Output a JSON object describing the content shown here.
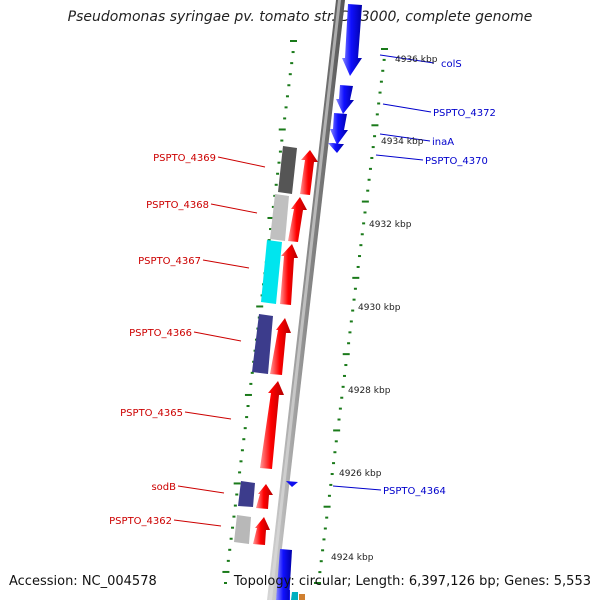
{
  "title": "Pseudomonas syringae pv. tomato str. DC3000, complete genome",
  "footer": {
    "accession": "Accession: NC_004578",
    "topology": "Topology: circular; Length: 6,397,126 bp; Genes: 5,553"
  },
  "colors": {
    "backbone": "#8c8c8c",
    "forward_arrow": "#0000ee",
    "reverse_arrow": "#ee0000",
    "left_label": "#cc0000",
    "right_label": "#0000cc",
    "tick": "#1a7a1a"
  },
  "coordinate_labels": [
    "4936 kbp",
    "4934 kbp",
    "4932 kbp",
    "4930 kbp",
    "4928 kbp",
    "4926 kbp",
    "4924 kbp"
  ],
  "left_genes": [
    "PSPTO_4369",
    "PSPTO_4368",
    "PSPTO_4367",
    "PSPTO_4366",
    "PSPTO_4365",
    "sodB",
    "PSPTO_4362"
  ],
  "right_genes": [
    "colS",
    "PSPTO_4372",
    "inaA",
    "PSPTO_4370",
    "PSPTO_4364"
  ],
  "category_box_colors": [
    "#555555",
    "#c0c0c0",
    "#00e5ee",
    "#3c3c8c",
    "#3c3c8c",
    "#b8b8b8"
  ]
}
